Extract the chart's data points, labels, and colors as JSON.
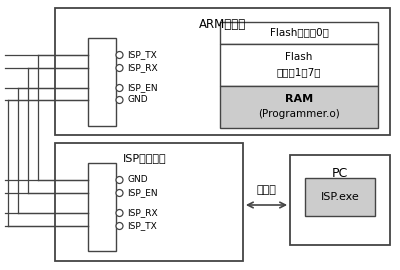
{
  "title_arm": "ARM开发板",
  "title_isp": "ISP刷写工具",
  "title_pc": "PC",
  "flash0_label": "Flash（扇区0）",
  "flash1_line1": "Flash",
  "flash1_line2": "（扇区1～7）",
  "ram_line1": "RAM",
  "ram_line2": "(Programmer.o)",
  "cable_label": "电缆线",
  "isp_exe_label": "ISP.exe",
  "arm_pins": [
    "ISP_TX",
    "ISP_RX",
    "ISP_EN",
    "GND"
  ],
  "isp_pins": [
    "GND",
    "ISP_EN",
    "ISP_RX",
    "ISP_TX"
  ],
  "box_edge": "#444444",
  "flash0_bg": "#ffffff",
  "flash1_bg": "#ffffff",
  "ram_bg": "#cccccc",
  "isp_exe_bg": "#cccccc",
  "wire_color": "#444444"
}
